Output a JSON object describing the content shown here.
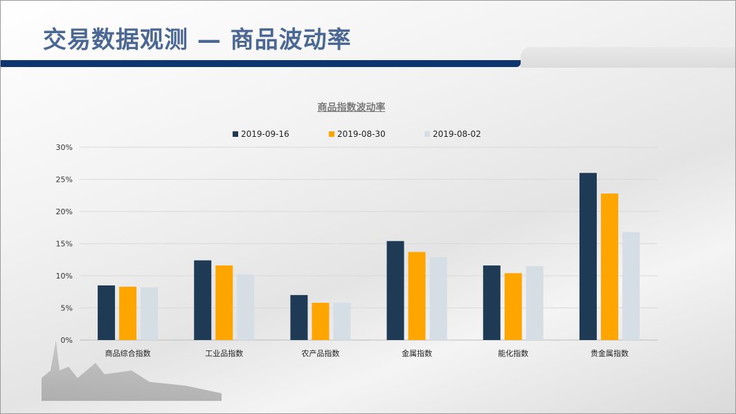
{
  "header": {
    "title": "交易数据观测 — 商品波动率"
  },
  "colors": {
    "title": "#4a6893",
    "band": "#0d3570"
  },
  "chart_data": {
    "type": "bar",
    "title": "商品指数波动率",
    "categories": [
      "商品综合指数",
      "工业品指数",
      "农产品指数",
      "金属指数",
      "能化指数",
      "贵金属指数"
    ],
    "series": [
      {
        "name": "2019-09-16",
        "color": "#1f3a55",
        "values": [
          8.5,
          12.4,
          7.0,
          15.4,
          11.6,
          26.0
        ]
      },
      {
        "name": "2019-08-30",
        "color": "#ffa500",
        "values": [
          8.3,
          11.6,
          5.8,
          13.7,
          10.4,
          22.8
        ]
      },
      {
        "name": "2019-08-02",
        "color": "#d5dde5",
        "values": [
          8.2,
          10.2,
          5.8,
          12.9,
          11.5,
          16.8
        ]
      }
    ],
    "ylim": [
      0,
      30
    ],
    "yticks": [
      "0%",
      "5%",
      "10%",
      "15%",
      "20%",
      "25%",
      "30%"
    ],
    "ytick_values": [
      0,
      5,
      10,
      15,
      20,
      25,
      30
    ],
    "grid": true,
    "legend": "top"
  }
}
